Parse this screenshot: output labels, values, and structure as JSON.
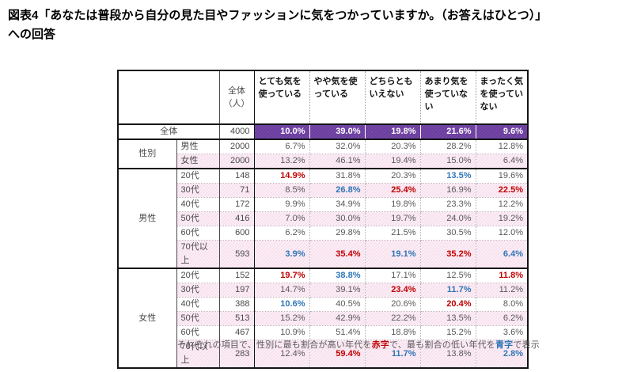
{
  "title": "図表4「あなたは普段から自分の見た目やファッションに気をつかっていますか。（お答えはひとつ）」\nへの回答",
  "colors": {
    "purple": "#6b3da0",
    "pink": "#f8e1ee",
    "red": "#c00000",
    "blue": "#2e75b6"
  },
  "footnote": {
    "pre": "それぞれの項目で、性別に最も割合が高い年代を",
    "red_term": "赤字",
    "mid": "で、最も割合の低い年代を",
    "blue_term": "青字",
    "post": "で表示"
  },
  "chart_data": {
    "type": "table",
    "title": "あなたは普段から自分の見た目やファッションに気をつかっていますか。（お答えはひとつ）",
    "columns": [
      "全体\n（人）",
      "とても気を使っている",
      "やや気を使っている",
      "どちらともいえない",
      "あまり気を使っていない",
      "まったく気を使っていない"
    ],
    "legend_note": "red = highest share within gender per item, blue = lowest share within gender per item",
    "rows": [
      {
        "label": "全体",
        "n": "4000",
        "total": true,
        "values": [
          "10.0%",
          "39.0%",
          "19.8%",
          "21.6%",
          "9.6%"
        ],
        "marks": [
          null,
          null,
          null,
          null,
          null
        ]
      },
      {
        "group": "性別",
        "group_span": 2,
        "label": "男性",
        "n": "2000",
        "values": [
          "6.7%",
          "32.0%",
          "20.3%",
          "28.2%",
          "12.8%"
        ],
        "marks": [
          null,
          null,
          null,
          null,
          null
        ]
      },
      {
        "label": "女性",
        "n": "2000",
        "values": [
          "13.2%",
          "46.1%",
          "19.4%",
          "15.0%",
          "6.4%"
        ],
        "marks": [
          null,
          null,
          null,
          null,
          null
        ]
      },
      {
        "group": "男性",
        "group_span": 6,
        "label": "20代",
        "n": "148",
        "values": [
          "14.9%",
          "31.8%",
          "20.3%",
          "13.5%",
          "19.6%"
        ],
        "marks": [
          "high",
          null,
          null,
          "low",
          null
        ]
      },
      {
        "label": "30代",
        "n": "71",
        "values": [
          "8.5%",
          "26.8%",
          "25.4%",
          "16.9%",
          "22.5%"
        ],
        "marks": [
          null,
          "low",
          "high",
          null,
          "high"
        ]
      },
      {
        "label": "40代",
        "n": "172",
        "values": [
          "9.9%",
          "34.9%",
          "19.8%",
          "23.3%",
          "12.2%"
        ],
        "marks": [
          null,
          null,
          null,
          null,
          null
        ]
      },
      {
        "label": "50代",
        "n": "416",
        "values": [
          "7.0%",
          "30.0%",
          "19.7%",
          "24.0%",
          "19.2%"
        ],
        "marks": [
          null,
          null,
          null,
          null,
          null
        ]
      },
      {
        "label": "60代",
        "n": "600",
        "values": [
          "6.2%",
          "29.8%",
          "21.5%",
          "30.5%",
          "12.0%"
        ],
        "marks": [
          null,
          null,
          null,
          null,
          null
        ]
      },
      {
        "label": "70代以上",
        "n": "593",
        "values": [
          "3.9%",
          "35.4%",
          "19.1%",
          "35.2%",
          "6.4%"
        ],
        "marks": [
          "low",
          "high",
          "low",
          "high",
          "low"
        ]
      },
      {
        "group": "女性",
        "group_span": 6,
        "label": "20代",
        "n": "152",
        "values": [
          "19.7%",
          "38.8%",
          "17.1%",
          "12.5%",
          "11.8%"
        ],
        "marks": [
          "high",
          "low",
          null,
          null,
          "high"
        ]
      },
      {
        "label": "30代",
        "n": "197",
        "values": [
          "14.7%",
          "39.1%",
          "23.4%",
          "11.7%",
          "11.2%"
        ],
        "marks": [
          null,
          null,
          "high",
          "low",
          null
        ]
      },
      {
        "label": "40代",
        "n": "388",
        "values": [
          "10.6%",
          "40.5%",
          "20.6%",
          "20.4%",
          "8.0%"
        ],
        "marks": [
          "low",
          null,
          null,
          "high",
          null
        ]
      },
      {
        "label": "50代",
        "n": "513",
        "values": [
          "15.2%",
          "42.9%",
          "22.2%",
          "13.5%",
          "6.2%"
        ],
        "marks": [
          null,
          null,
          null,
          null,
          null
        ]
      },
      {
        "label": "60代",
        "n": "467",
        "values": [
          "10.9%",
          "51.4%",
          "18.8%",
          "15.2%",
          "3.6%"
        ],
        "marks": [
          null,
          null,
          null,
          null,
          null
        ]
      },
      {
        "label": "70代以上",
        "n": "283",
        "values": [
          "12.4%",
          "59.4%",
          "11.7%",
          "13.8%",
          "2.8%"
        ],
        "marks": [
          null,
          "high",
          "low",
          null,
          "low"
        ]
      }
    ]
  }
}
